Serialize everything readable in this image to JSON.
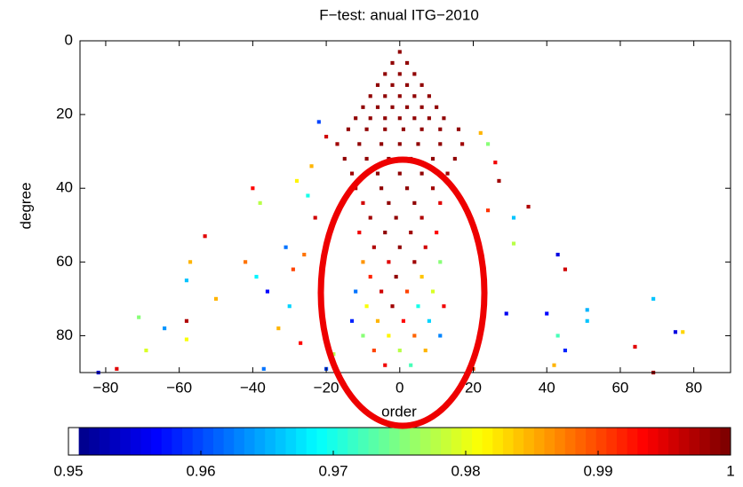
{
  "chart_data": {
    "type": "scatter",
    "title": "F−test: anual ITG−2010",
    "xlabel": "order",
    "ylabel": "degree",
    "xlim": [
      -87,
      90
    ],
    "ylim": [
      0,
      90
    ],
    "y_reversed": true,
    "xticks": [
      {
        "value": -80,
        "label": "−80"
      },
      {
        "value": -60,
        "label": "−60"
      },
      {
        "value": -40,
        "label": "−40"
      },
      {
        "value": -20,
        "label": "−20"
      },
      0,
      20,
      40,
      60,
      80
    ],
    "yticks": [
      0,
      20,
      40,
      60,
      80
    ],
    "colormap": "jet",
    "clim": [
      0.95,
      1
    ],
    "cticks": [
      0.95,
      0.96,
      0.97,
      0.98,
      0.99,
      1
    ],
    "x": [
      0,
      -2,
      2,
      -4,
      0,
      4,
      -6,
      -2,
      2,
      6,
      -8,
      -4,
      0,
      4,
      8,
      -10,
      -6,
      -2,
      2,
      6,
      10,
      -12,
      -8,
      -4,
      0,
      4,
      8,
      12,
      -14,
      -9,
      -4,
      1,
      6,
      11,
      16,
      -17,
      -11,
      -5,
      0,
      5,
      11,
      17,
      -15,
      -9,
      -3,
      3,
      9,
      15,
      -13,
      -6,
      0,
      6,
      13,
      -12,
      -5,
      2,
      9,
      -10,
      -3,
      4,
      11,
      -8,
      -1,
      6,
      -11,
      -4,
      3,
      10,
      -7,
      0,
      7,
      -10,
      -3,
      4,
      11,
      -8,
      -1,
      6,
      -12,
      -5,
      2,
      9,
      -9,
      -2,
      5,
      12,
      -13,
      -6,
      1,
      8,
      -10,
      -3,
      4,
      11,
      -7,
      0,
      7,
      -4,
      3,
      -22,
      -20,
      22,
      24,
      -24,
      26,
      -28,
      27,
      -40,
      -38,
      -25,
      -23,
      24,
      31,
      35,
      -53,
      -31,
      -26,
      31,
      -57,
      -58,
      -42,
      -39,
      -29,
      43,
      45,
      -50,
      -36,
      -30,
      -71,
      -58,
      -58,
      -64,
      -69,
      -33,
      -27,
      29,
      40,
      51,
      51,
      69,
      75,
      77,
      43,
      45,
      64,
      42,
      -82,
      -77,
      -37,
      69,
      20,
      -20,
      -18
    ],
    "y": [
      3,
      6,
      6,
      9,
      9,
      9,
      12,
      12,
      12,
      12,
      15,
      15,
      15,
      15,
      15,
      18,
      18,
      18,
      18,
      18,
      18,
      21,
      21,
      21,
      21,
      21,
      21,
      21,
      24,
      24,
      24,
      24,
      24,
      24,
      24,
      28,
      28,
      28,
      28,
      28,
      28,
      28,
      32,
      32,
      32,
      32,
      32,
      32,
      36,
      36,
      36,
      36,
      36,
      40,
      40,
      40,
      40,
      44,
      44,
      44,
      44,
      48,
      48,
      48,
      52,
      52,
      52,
      52,
      56,
      56,
      56,
      60,
      60,
      60,
      60,
      64,
      64,
      64,
      68,
      68,
      68,
      68,
      72,
      72,
      72,
      72,
      76,
      76,
      76,
      76,
      80,
      80,
      80,
      80,
      84,
      84,
      84,
      88,
      88,
      22,
      26,
      25,
      28,
      34,
      33,
      38,
      38,
      40,
      44,
      42,
      48,
      46,
      48,
      45,
      53,
      56,
      58,
      55,
      60,
      65,
      60,
      64,
      62,
      58,
      62,
      70,
      68,
      72,
      75,
      76,
      81,
      78,
      84,
      78,
      82,
      74,
      74,
      73,
      76,
      70,
      79,
      79,
      80,
      84,
      83,
      88,
      90,
      89,
      89,
      90,
      89,
      89,
      85
    ],
    "values": [
      0.999,
      0.999,
      0.999,
      0.999,
      0.999,
      0.999,
      0.999,
      0.999,
      0.999,
      0.999,
      0.999,
      0.999,
      0.999,
      0.999,
      0.999,
      0.999,
      0.999,
      0.999,
      0.999,
      0.999,
      0.999,
      0.999,
      0.999,
      0.999,
      0.999,
      0.999,
      0.999,
      0.999,
      0.999,
      0.999,
      0.999,
      0.999,
      0.999,
      0.999,
      0.999,
      0.998,
      0.999,
      0.999,
      0.999,
      0.999,
      0.999,
      0.998,
      0.999,
      0.999,
      0.999,
      0.999,
      0.999,
      0.999,
      0.998,
      0.999,
      0.999,
      0.999,
      0.998,
      0.997,
      0.999,
      0.999,
      0.998,
      0.996,
      0.999,
      0.999,
      0.995,
      0.998,
      0.999,
      0.997,
      0.994,
      0.999,
      0.998,
      0.993,
      0.997,
      0.999,
      0.996,
      0.986,
      0.995,
      0.998,
      0.975,
      0.992,
      0.999,
      0.984,
      0.962,
      0.996,
      0.99,
      0.979,
      0.981,
      0.998,
      0.97,
      0.994,
      0.958,
      0.985,
      0.993,
      0.967,
      0.975,
      0.982,
      0.989,
      0.963,
      0.99,
      0.978,
      0.985,
      0.994,
      0.972,
      0.96,
      0.996,
      0.985,
      0.975,
      0.985,
      0.994,
      0.982,
      0.998,
      0.993,
      0.978,
      0.97,
      0.996,
      0.991,
      0.966,
      0.997,
      0.995,
      0.962,
      0.988,
      0.978,
      0.985,
      0.966,
      0.988,
      0.968,
      0.99,
      0.955,
      0.996,
      0.985,
      0.957,
      0.967,
      0.975,
      0.997,
      0.981,
      0.964,
      0.979,
      0.985,
      0.993,
      0.956,
      0.957,
      0.965,
      0.966,
      0.966,
      0.955,
      0.983,
      0.972,
      0.958,
      0.995,
      0.985,
      0.955,
      0.995,
      0.962,
      0.998,
      0.99,
      0.96,
      0.978
    ]
  }
}
